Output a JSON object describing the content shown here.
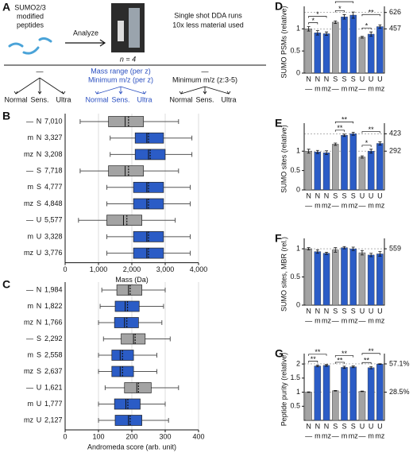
{
  "panel_a": {
    "label": "A",
    "peptides": [
      "SUMO2/3",
      "modified",
      "peptides"
    ],
    "arrow_text": "Analyze",
    "n_text": "n = 4",
    "run_text": [
      "Single shot DDA runs",
      "10x less material used"
    ],
    "groups": [
      {
        "lines": [
          "—"
        ],
        "leaves": [
          "Normal",
          "Sens.",
          "Ultra"
        ]
      },
      {
        "lines": [
          "Mass range (per z)",
          "Minimum m/z (per z)"
        ],
        "leaves": [
          "Normal",
          "Sens.",
          "Ultra"
        ]
      },
      {
        "lines": [
          "—",
          "Minimum m/z (z:3-5)"
        ],
        "leaves": [
          "Normal",
          "Sens.",
          "Ultra"
        ]
      }
    ]
  },
  "chart_data": [
    {
      "type": "box",
      "panel": "B",
      "x_label": "Mass (Da)",
      "xlim": [
        0,
        4000
      ],
      "xticks": [
        0,
        {
          "value": 1000,
          "label": "1,000"
        },
        {
          "value": 2000,
          "label": "2,000"
        },
        {
          "value": 3000,
          "label": "3,000"
        },
        {
          "value": 4000,
          "label": "4,000"
        }
      ],
      "grid": true,
      "rows": [
        {
          "mod": "—",
          "mode": "N",
          "count": "7,010"
        },
        {
          "mod": "m",
          "mode": "N",
          "count": "3,327"
        },
        {
          "mod": "mz",
          "mode": "N",
          "count": "3,208"
        },
        {
          "mod": "—",
          "mode": "S",
          "count": "7,718"
        },
        {
          "mod": "m",
          "mode": "S",
          "count": "4,777"
        },
        {
          "mod": "mz",
          "mode": "S",
          "count": "4,848"
        },
        {
          "mod": "—",
          "mode": "U",
          "count": "5,577"
        },
        {
          "mod": "m",
          "mode": "U",
          "count": "3,328"
        },
        {
          "mod": "mz",
          "mode": "U",
          "count": "3,776"
        }
      ],
      "colors": [
        "#a3a3a3",
        "#2b5cc6",
        "#2b5cc6",
        "#a3a3a3",
        "#2b5cc6",
        "#2b5cc6",
        "#a3a3a3",
        "#2b5cc6",
        "#2b5cc6"
      ],
      "boxes": [
        {
          "whisker_low": 450,
          "q1": 1300,
          "median": 1800,
          "q3": 2350,
          "whisker_high": 3400,
          "mean": 1900
        },
        {
          "whisker_low": 1350,
          "q1": 2100,
          "median": 2450,
          "q3": 2950,
          "whisker_high": 3800,
          "mean": 2500
        },
        {
          "whisker_low": 1350,
          "q1": 2100,
          "median": 2500,
          "q3": 3000,
          "whisker_high": 3800,
          "mean": 2550
        },
        {
          "whisker_low": 450,
          "q1": 1300,
          "median": 1800,
          "q3": 2350,
          "whisker_high": 3400,
          "mean": 1900
        },
        {
          "whisker_low": 1250,
          "q1": 2050,
          "median": 2450,
          "q3": 2950,
          "whisker_high": 3750,
          "mean": 2500
        },
        {
          "whisker_low": 1250,
          "q1": 2050,
          "median": 2450,
          "q3": 2950,
          "whisker_high": 3750,
          "mean": 2500
        },
        {
          "whisker_low": 400,
          "q1": 1250,
          "median": 1750,
          "q3": 2300,
          "whisker_high": 3300,
          "mean": 1850
        },
        {
          "whisker_low": 1250,
          "q1": 2050,
          "median": 2450,
          "q3": 2950,
          "whisker_high": 3750,
          "mean": 2500
        },
        {
          "whisker_low": 1250,
          "q1": 2050,
          "median": 2450,
          "q3": 2950,
          "whisker_high": 3750,
          "mean": 2500
        }
      ]
    },
    {
      "type": "box",
      "panel": "C",
      "x_label": "Andromeda score (arb. unit)",
      "xlim": [
        0,
        400
      ],
      "xticks": [
        0,
        100,
        200,
        300,
        400
      ],
      "grid": true,
      "rows": [
        {
          "mod": "—",
          "mode": "N",
          "count": "1,984"
        },
        {
          "mod": "m",
          "mode": "N",
          "count": "1,822"
        },
        {
          "mod": "mz",
          "mode": "N",
          "count": "1,766"
        },
        {
          "mod": "—",
          "mode": "S",
          "count": "2,292"
        },
        {
          "mod": "m",
          "mode": "S",
          "count": "2,558"
        },
        {
          "mod": "mz",
          "mode": "S",
          "count": "2,637"
        },
        {
          "mod": "—",
          "mode": "U",
          "count": "1,621"
        },
        {
          "mod": "m",
          "mode": "U",
          "count": "1,777"
        },
        {
          "mod": "mz",
          "mode": "U",
          "count": "2,127"
        }
      ],
      "colors": [
        "#a3a3a3",
        "#2b5cc6",
        "#2b5cc6",
        "#a3a3a3",
        "#2b5cc6",
        "#2b5cc6",
        "#a3a3a3",
        "#2b5cc6",
        "#2b5cc6"
      ],
      "boxes": [
        {
          "whisker_low": 110,
          "q1": 155,
          "median": 190,
          "q3": 230,
          "whisker_high": 300,
          "mean": 195
        },
        {
          "whisker_low": 105,
          "q1": 150,
          "median": 180,
          "q3": 222,
          "whisker_high": 295,
          "mean": 187
        },
        {
          "whisker_low": 100,
          "q1": 148,
          "median": 178,
          "q3": 220,
          "whisker_high": 290,
          "mean": 185
        },
        {
          "whisker_low": 115,
          "q1": 168,
          "median": 205,
          "q3": 240,
          "whisker_high": 315,
          "mean": 210
        },
        {
          "whisker_low": 100,
          "q1": 140,
          "median": 165,
          "q3": 205,
          "whisker_high": 275,
          "mean": 172
        },
        {
          "whisker_low": 100,
          "q1": 140,
          "median": 165,
          "q3": 205,
          "whisker_high": 275,
          "mean": 172
        },
        {
          "whisker_low": 120,
          "q1": 178,
          "median": 215,
          "q3": 258,
          "whisker_high": 340,
          "mean": 220
        },
        {
          "whisker_low": 100,
          "q1": 148,
          "median": 182,
          "q3": 225,
          "whisker_high": 300,
          "mean": 188
        },
        {
          "whisker_low": 100,
          "q1": 150,
          "median": 190,
          "q3": 230,
          "whisker_high": 310,
          "mean": 195
        }
      ]
    },
    {
      "type": "bar",
      "panel": "D",
      "y_label": "SUMO PSMs (relative)",
      "ylim": [
        0,
        1.4
      ],
      "yticks": [
        0,
        0.5,
        1
      ],
      "y2lim": [
        0,
        640
      ],
      "y2ticks": [
        457,
        626
      ],
      "categories": [
        "N",
        "N",
        "N",
        "S",
        "S",
        "S",
        "U",
        "U",
        "U"
      ],
      "subcategories": [
        "—",
        "m",
        "mz",
        "—",
        "m",
        "mz",
        "—",
        "m",
        "mz"
      ],
      "colors": [
        "#a3a3a3",
        "#2b5cc6",
        "#2b5cc6",
        "#a3a3a3",
        "#2b5cc6",
        "#2b5cc6",
        "#a3a3a3",
        "#2b5cc6",
        "#2b5cc6"
      ],
      "values": [
        1.0,
        0.91,
        0.89,
        1.15,
        1.27,
        1.31,
        0.81,
        0.88,
        1.05
      ],
      "errors": [
        0.05,
        0.05,
        0.04,
        0.03,
        0.05,
        0.07,
        0.02,
        0.05,
        0.04
      ],
      "brackets": [
        {
          "from": 0,
          "to": 1,
          "label": "*"
        },
        {
          "from": 0,
          "to": 2,
          "label": "*"
        },
        {
          "from": 3,
          "to": 4,
          "label": "*"
        },
        {
          "from": 3,
          "to": 5,
          "label": "*"
        },
        {
          "from": 6,
          "to": 7,
          "label": "*"
        },
        {
          "from": 6,
          "to": 8,
          "label": "**"
        }
      ]
    },
    {
      "type": "bar",
      "panel": "E",
      "y_label": "SUMO sites (relative)",
      "ylim": [
        0,
        1.6
      ],
      "yticks": [
        0,
        0.5,
        1
      ],
      "y2lim": [
        0,
        467
      ],
      "y2ticks": [
        292,
        423
      ],
      "categories": [
        "N",
        "N",
        "N",
        "S",
        "S",
        "S",
        "U",
        "U",
        "U"
      ],
      "subcategories": [
        "—",
        "m",
        "mz",
        "—",
        "m",
        "mz",
        "—",
        "m",
        "mz"
      ],
      "colors": [
        "#a3a3a3",
        "#2b5cc6",
        "#2b5cc6",
        "#a3a3a3",
        "#2b5cc6",
        "#2b5cc6",
        "#a3a3a3",
        "#2b5cc6",
        "#2b5cc6"
      ],
      "values": [
        1.0,
        0.98,
        0.96,
        1.18,
        1.41,
        1.45,
        0.85,
        1.0,
        1.2
      ],
      "errors": [
        0.05,
        0.04,
        0.05,
        0.03,
        0.03,
        0.04,
        0.03,
        0.05,
        0.04
      ],
      "brackets": [
        {
          "from": 3,
          "to": 4,
          "label": "**"
        },
        {
          "from": 3,
          "to": 5,
          "label": "**"
        },
        {
          "from": 6,
          "to": 7,
          "label": "*"
        },
        {
          "from": 6,
          "to": 8,
          "label": "**"
        }
      ]
    },
    {
      "type": "bar",
      "panel": "F",
      "y_label": "SUMO sites, MBR (rel.)",
      "ylim": [
        0,
        1.1
      ],
      "yticks": [
        0,
        0.5,
        1
      ],
      "y2lim": [
        0,
        615
      ],
      "y2ticks": [
        559
      ],
      "categories": [
        "N",
        "N",
        "N",
        "S",
        "S",
        "S",
        "U",
        "U",
        "U"
      ],
      "subcategories": [
        "—",
        "m",
        "mz",
        "—",
        "m",
        "mz",
        "—",
        "m",
        "mz"
      ],
      "colors": [
        "#a3a3a3",
        "#2b5cc6",
        "#2b5cc6",
        "#a3a3a3",
        "#2b5cc6",
        "#2b5cc6",
        "#a3a3a3",
        "#2b5cc6",
        "#2b5cc6"
      ],
      "values": [
        1.0,
        0.95,
        0.92,
        0.98,
        1.02,
        1.0,
        0.93,
        0.89,
        0.91
      ],
      "errors": [
        0.02,
        0.03,
        0.02,
        0.04,
        0.02,
        0.03,
        0.04,
        0.03,
        0.04
      ],
      "brackets": []
    },
    {
      "type": "bar",
      "panel": "G",
      "y_label": "Peptide purity (relative)",
      "ylim": [
        0,
        2.2
      ],
      "yticks": [
        0.5,
        1,
        1.5,
        2
      ],
      "y2lim": [
        0,
        62.7
      ],
      "y2ticks": [
        {
          "value": 28.5,
          "label": "28.5%"
        },
        {
          "value": 57.1,
          "label": "57.1%"
        }
      ],
      "categories": [
        "N",
        "N",
        "N",
        "S",
        "S",
        "S",
        "U",
        "U",
        "U"
      ],
      "subcategories": [
        "—",
        "m",
        "mz",
        "—",
        "m",
        "mz",
        "—",
        "m",
        "mz"
      ],
      "colors": [
        "#a3a3a3",
        "#2b5cc6",
        "#2b5cc6",
        "#a3a3a3",
        "#2b5cc6",
        "#2b5cc6",
        "#a3a3a3",
        "#2b5cc6",
        "#2b5cc6"
      ],
      "values": [
        1.0,
        1.93,
        1.95,
        1.05,
        1.88,
        1.9,
        1.03,
        1.87,
        2.0
      ],
      "errors": [
        0.01,
        0.03,
        0.03,
        0.01,
        0.04,
        0.03,
        0.01,
        0.04,
        0.01
      ],
      "brackets": [
        {
          "from": 0,
          "to": 1,
          "label": "**"
        },
        {
          "from": 0,
          "to": 2,
          "label": "**"
        },
        {
          "from": 3,
          "to": 4,
          "label": "**"
        },
        {
          "from": 3,
          "to": 5,
          "label": "**"
        },
        {
          "from": 6,
          "to": 7,
          "label": "**"
        },
        {
          "from": 6,
          "to": 8,
          "label": "**"
        }
      ]
    }
  ]
}
